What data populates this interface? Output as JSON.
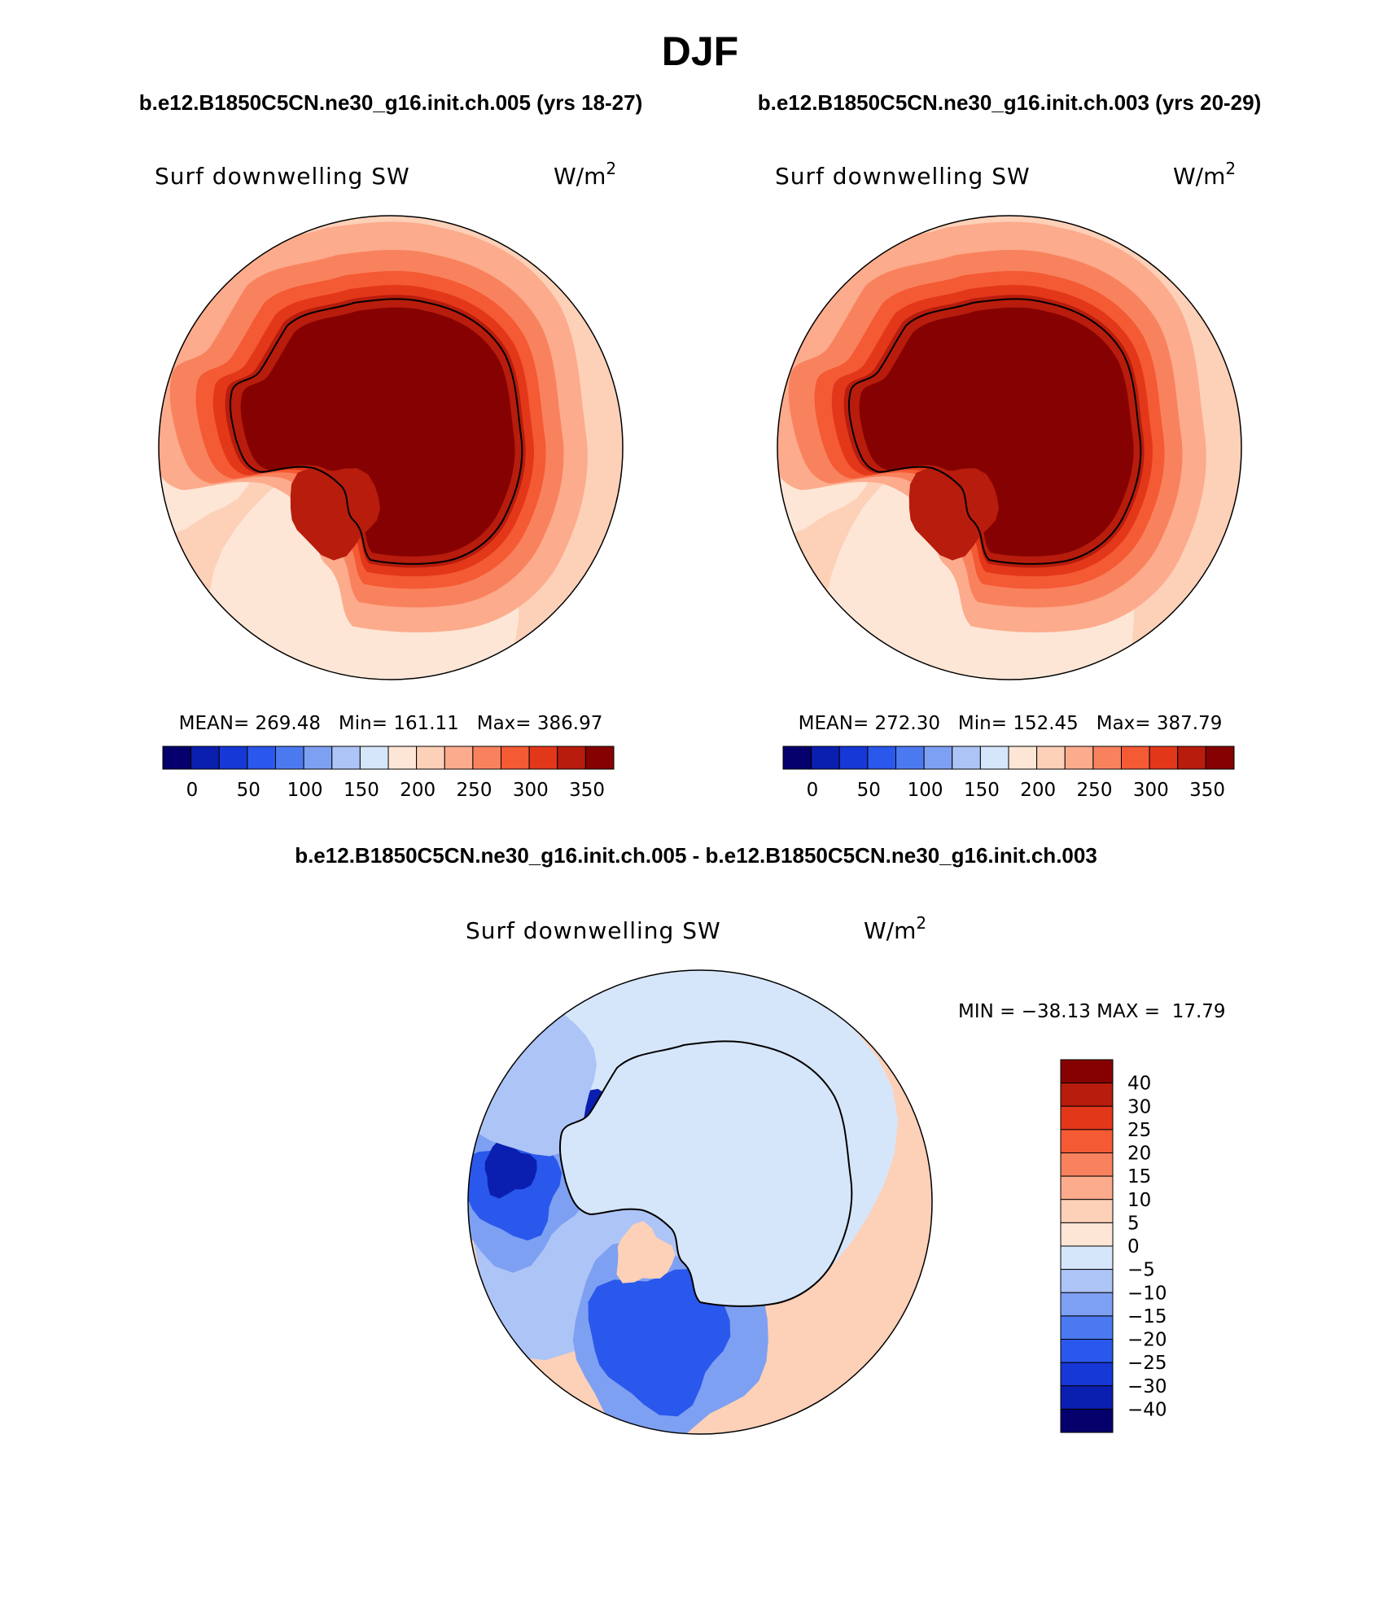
{
  "figure": {
    "title": "DJF",
    "case1_title": "b.e12.B1850C5CN.ne30_g16.init.ch.005 (yrs 18-27)",
    "case2_title": "b.e12.B1850C5CN.ne30_g16.init.ch.003 (yrs 20-29)",
    "diff_title": "b.e12.B1850C5CN.ne30_g16.init.ch.005 - b.e12.B1850C5CN.ne30_g16.init.ch.003"
  },
  "panels": [
    {
      "variable": "Surf downwelling SW",
      "units": "W/m",
      "units_sup": "2",
      "stats": "MEAN= 269.48   Min= 161.11   Max= 386.97"
    },
    {
      "variable": "Surf downwelling SW",
      "units": "W/m",
      "units_sup": "2",
      "stats": "MEAN= 272.30   Min= 152.45   Max= 387.79"
    },
    {
      "variable": "Surf downwelling SW",
      "units": "W/m",
      "units_sup": "2",
      "stats": "MIN = −38.13 MAX =  17.79"
    }
  ],
  "colorbar_abs": {
    "labels": [
      "0",
      "50",
      "100",
      "150",
      "200",
      "250",
      "300",
      "350"
    ],
    "colors": [
      "#05006b",
      "#0a1fb0",
      "#1538d6",
      "#2a58ec",
      "#4b7af0",
      "#7ea0f2",
      "#adc4f6",
      "#d6e6fa",
      "#fde6d6",
      "#fdd0b8",
      "#fcab8c",
      "#f9825e",
      "#f45a34",
      "#e3371a",
      "#b81c0c",
      "#860202"
    ]
  },
  "colorbar_diff": {
    "labels": [
      "40",
      "30",
      "25",
      "20",
      "15",
      "10",
      "5",
      "0",
      "−5",
      "−10",
      "−15",
      "−20",
      "−25",
      "−30",
      "−40"
    ],
    "colors": [
      "#860202",
      "#b81c0c",
      "#e3371a",
      "#f45a34",
      "#f9825e",
      "#fcab8c",
      "#fdd0b8",
      "#fde6d6",
      "#d6e6fa",
      "#adc4f6",
      "#7ea0f2",
      "#4b7af0",
      "#2a58ec",
      "#1538d6",
      "#0a1fb0",
      "#05006b"
    ]
  },
  "map_colors": {
    "ocean_pale": "#fde6d6",
    "ocean_light": "#fdd0b8",
    "ocean_mid": "#fcab8c",
    "orange": "#f9825e",
    "red_orange": "#f45a34",
    "red": "#e3371a",
    "dark_red": "#b81c0c",
    "interior": "#860202",
    "diff_base": "#fdd0b8",
    "diff_blue_pale": "#d6e6fa",
    "diff_blue_light": "#adc4f6",
    "diff_blue_mid": "#7ea0f2",
    "diff_blue": "#2a58ec",
    "diff_blue_dark": "#0a1fb0"
  }
}
